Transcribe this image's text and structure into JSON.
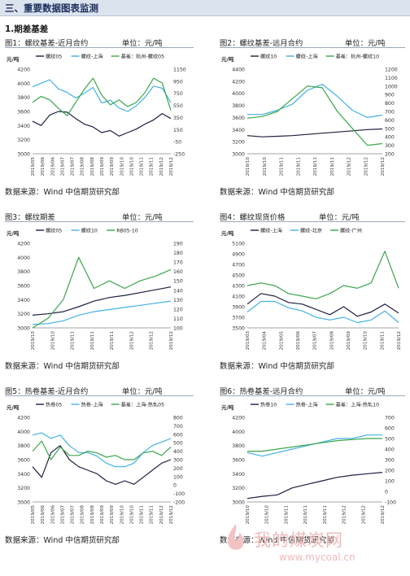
{
  "header": {
    "section_title": "三、重要数据图表监测",
    "subsection_title": "1.期差基差"
  },
  "charts": [
    {
      "title": "图1：螺纹基差-近月合约",
      "unit": "单位：元/吨",
      "source": "数据来源：Wind 中信期货研究部",
      "chart_data": {
        "type": "line",
        "left_axis": {
          "label": "元/吨",
          "ticks": [
            3000,
            3200,
            3400,
            3600,
            3800,
            4000,
            4200
          ],
          "range": [
            3000,
            4200
          ]
        },
        "right_axis": {
          "ticks": [
            -250,
            -50,
            150,
            350,
            550,
            750,
            950,
            1150
          ],
          "range": [
            -250,
            1150
          ]
        },
        "x_ticks": [
          "2019/05",
          "2019/06",
          "2019/06",
          "2019/07",
          "2019/07",
          "2019/08",
          "2019/08",
          "2019/09",
          "2019/09",
          "2019/10",
          "2019/10",
          "2019/11",
          "2019/11",
          "2019/12",
          "2019/12"
        ],
        "series": [
          {
            "name": "螺纹05",
            "color": "#1c1f3f",
            "axis": "left",
            "values": [
              3460,
              3400,
              3550,
              3600,
              3590,
              3500,
              3420,
              3380,
              3300,
              3330,
              3250,
              3300,
              3350,
              3420,
              3480,
              3570,
              3500
            ]
          },
          {
            "name": "螺纹-上海",
            "color": "#42b1e5",
            "axis": "left",
            "values": [
              3950,
              4000,
              4050,
              3920,
              3870,
              3790,
              3860,
              3940,
              3720,
              3760,
              3650,
              3600,
              3680,
              3800,
              3960,
              3930,
              3730
            ]
          },
          {
            "name": "基差：杭州-螺纹05",
            "color": "#3aa64a",
            "axis": "right",
            "values": [
              600,
              700,
              640,
              500,
              380,
              600,
              820,
              1000,
              720,
              560,
              640,
              530,
              600,
              760,
              1000,
              920,
              470
            ]
          }
        ]
      }
    },
    {
      "title": "图2：螺纹基差-远月合约",
      "unit": "单位：元/吨",
      "source": "数据来源：Wind 中信期货研究部",
      "chart_data": {
        "type": "line",
        "left_axis": {
          "label": "元/吨",
          "ticks": [
            3000,
            3200,
            3400,
            3600,
            3800,
            4000,
            4200,
            4400
          ],
          "range": [
            3000,
            4400
          ]
        },
        "right_axis": {
          "ticks": [
            200,
            300,
            400,
            500,
            600,
            700,
            800,
            900,
            1000,
            1100,
            1200
          ],
          "range": [
            200,
            1200
          ]
        },
        "x_ticks": [
          "2019/10",
          "2019/10",
          "2019/11",
          "2019/11",
          "2019/11",
          "2019/11",
          "2019/12",
          "2019/12",
          "2019/12"
        ],
        "series": [
          {
            "name": "螺纹10",
            "color": "#1c1f3f",
            "axis": "left",
            "values": [
              3300,
              3280,
              3290,
              3300,
              3320,
              3340,
              3360,
              3380,
              3400,
              3410
            ]
          },
          {
            "name": "螺纹-上海",
            "color": "#42b1e5",
            "axis": "left",
            "values": [
              3650,
              3650,
              3720,
              3820,
              4050,
              4150,
              3950,
              3720,
              3600,
              3640
            ]
          },
          {
            "name": "基差：杭州-螺纹10",
            "color": "#3aa64a",
            "axis": "right",
            "values": [
              620,
              640,
              700,
              850,
              1000,
              980,
              700,
              500,
              300,
              320
            ]
          }
        ]
      }
    },
    {
      "title": "图3：螺纹期差",
      "unit": "单位：元/吨",
      "source": "数据来源：Wind 中信期货研究部",
      "chart_data": {
        "type": "line",
        "left_axis": {
          "label": "元/吨",
          "ticks": [
            3000,
            3200,
            3400,
            3600,
            3800,
            4000,
            4200
          ],
          "range": [
            3000,
            4200
          ]
        },
        "right_axis": {
          "ticks": [
            100,
            110,
            120,
            130,
            140,
            150,
            160,
            170,
            180,
            190
          ],
          "range": [
            100,
            190
          ]
        },
        "x_ticks": [
          "2019/10",
          "2019/10",
          "2019/11",
          "2019/11",
          "2019/11",
          "2019/12",
          "2019/12",
          "2019/12"
        ],
        "series": [
          {
            "name": "螺纹05",
            "color": "#1c1f3f",
            "axis": "left",
            "values": [
              3180,
              3200,
              3230,
              3300,
              3380,
              3430,
              3460,
              3500,
              3540,
              3580
            ]
          },
          {
            "name": "螺纹10",
            "color": "#42b1e5",
            "axis": "left",
            "values": [
              3050,
              3060,
              3100,
              3180,
              3230,
              3260,
              3290,
              3320,
              3350,
              3380
            ]
          },
          {
            "name": "RB05-10",
            "color": "#3aa64a",
            "axis": "right",
            "values": [
              100,
              110,
              130,
              175,
              142,
              150,
              142,
              150,
              155,
              162
            ]
          }
        ]
      }
    },
    {
      "title": "图4：螺纹现货价格",
      "unit": "单位：元/吨",
      "source": "数据来源：Wind 中信期货研究部",
      "chart_data": {
        "type": "line",
        "left_axis": {
          "label": "元/吨",
          "ticks": [
            3500,
            3700,
            3900,
            4100,
            4300,
            4500,
            4700,
            4900,
            5100
          ],
          "range": [
            3500,
            5100
          ]
        },
        "x_ticks": [
          "2019/03",
          "2019/04",
          "2019/05",
          "2019/06",
          "2019/07",
          "2019/08",
          "2019/09",
          "2019/10",
          "2019/11",
          "2019/12"
        ],
        "series": [
          {
            "name": "螺纹-上海",
            "color": "#1c1f3f",
            "values": [
              3950,
              4150,
              4100,
              3980,
              3950,
              3850,
              3750,
              3900,
              3720,
              3800,
              3950,
              3780
            ]
          },
          {
            "name": "螺纹-北京",
            "color": "#42b1e5",
            "values": [
              3800,
              4000,
              4000,
              3880,
              3820,
              3700,
              3650,
              3700,
              3600,
              3650,
              3820,
              3600
            ]
          },
          {
            "name": "螺纹-广州",
            "color": "#3aa64a",
            "values": [
              4300,
              4350,
              4300,
              4150,
              4100,
              4050,
              4150,
              4300,
              4250,
              4350,
              4950,
              4250
            ]
          }
        ]
      }
    },
    {
      "title": "图5：热卷基差-近月合约",
      "unit": "单位：元/吨",
      "source": "数据来源：Wind 中信期货研究部",
      "chart_data": {
        "type": "line",
        "left_axis": {
          "label": "元/吨",
          "ticks": [
            3000,
            3200,
            3400,
            3600,
            3800,
            4000,
            4200
          ],
          "range": [
            3000,
            4200
          ]
        },
        "right_axis": {
          "ticks": [
            -200,
            -100,
            0,
            100,
            200,
            300,
            400,
            500,
            600,
            700,
            800
          ],
          "range": [
            -200,
            800
          ]
        },
        "x_ticks": [
          "2019/05",
          "2019/06",
          "2019/06",
          "2019/07",
          "2019/07",
          "2019/08",
          "2019/08",
          "2019/09",
          "2019/09",
          "2019/10",
          "2019/10",
          "2019/11",
          "2019/11",
          "2019/12",
          "2019/12"
        ],
        "series": [
          {
            "name": "热卷05",
            "color": "#1c1f3f",
            "axis": "left",
            "values": [
              3500,
              3350,
              3700,
              3800,
              3600,
              3500,
              3450,
              3400,
              3300,
              3250,
              3300,
              3250,
              3350,
              3450,
              3550,
              3600
            ]
          },
          {
            "name": "热卷-上海",
            "color": "#42b1e5",
            "axis": "left",
            "values": [
              3950,
              3980,
              3900,
              3950,
              3800,
              3700,
              3700,
              3650,
              3550,
              3500,
              3500,
              3550,
              3700,
              3800,
              3850,
              3900
            ]
          },
          {
            "name": "基差：上海-热轧05",
            "color": "#3aa64a",
            "axis": "right",
            "values": [
              400,
              520,
              300,
              450,
              350,
              350,
              400,
              380,
              330,
              350,
              300,
              300,
              380,
              400,
              350,
              450
            ]
          }
        ]
      }
    },
    {
      "title": "图6：热卷基差-远月合约",
      "unit": "单位：元/吨",
      "source": "数据来源：Wind 中信期货研究部",
      "chart_data": {
        "type": "line",
        "left_axis": {
          "label": "元/吨",
          "ticks": [
            3000,
            3200,
            3400,
            3600,
            3800,
            4000,
            4200
          ],
          "range": [
            3000,
            4200
          ]
        },
        "right_axis": {
          "ticks": [
            -100,
            0,
            100,
            200,
            300,
            400,
            500,
            600,
            700
          ],
          "range": [
            -100,
            700
          ]
        },
        "x_ticks": [
          "2019/10",
          "2019/10",
          "2019/11",
          "2019/11",
          "2019/11",
          "2019/12",
          "2019/12",
          "2019/12"
        ],
        "series": [
          {
            "name": "热卷10",
            "color": "#1c1f3f",
            "axis": "left",
            "values": [
              3050,
              3080,
              3100,
              3200,
              3250,
              3300,
              3350,
              3380,
              3400,
              3420
            ]
          },
          {
            "name": "热卷-上海",
            "color": "#42b1e5",
            "axis": "left",
            "values": [
              3700,
              3650,
              3700,
              3750,
              3800,
              3850,
              3900,
              3900,
              3950,
              3950
            ]
          },
          {
            "name": "基差：上海-热轧10",
            "color": "#3aa64a",
            "axis": "right",
            "values": [
              380,
              380,
              400,
              420,
              440,
              460,
              480,
              490,
              500,
              500
            ]
          }
        ]
      }
    }
  ],
  "watermark": {
    "text": "我的煤炭网",
    "url": "www.mycoal.cn"
  }
}
